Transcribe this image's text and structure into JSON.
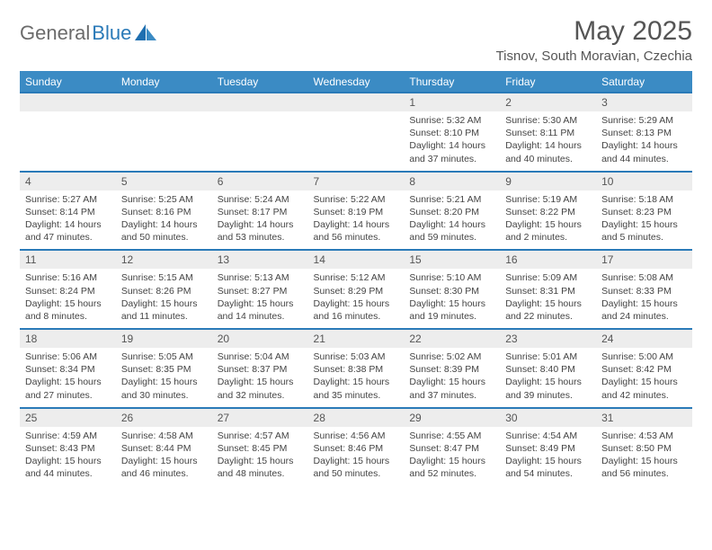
{
  "logo": {
    "text_gray": "General",
    "text_blue": "Blue"
  },
  "title": {
    "month": "May 2025",
    "location": "Tisnov, South Moravian, Czechia"
  },
  "colors": {
    "header_blue": "#3b8bc4",
    "rule_blue": "#2a7ab8",
    "daynum_bg": "#ededed",
    "text": "#444444"
  },
  "dow": [
    "Sunday",
    "Monday",
    "Tuesday",
    "Wednesday",
    "Thursday",
    "Friday",
    "Saturday"
  ],
  "weeks": [
    [
      null,
      null,
      null,
      null,
      {
        "n": "1",
        "sr": "5:32 AM",
        "ss": "8:10 PM",
        "dl": "14 hours and 37 minutes."
      },
      {
        "n": "2",
        "sr": "5:30 AM",
        "ss": "8:11 PM",
        "dl": "14 hours and 40 minutes."
      },
      {
        "n": "3",
        "sr": "5:29 AM",
        "ss": "8:13 PM",
        "dl": "14 hours and 44 minutes."
      }
    ],
    [
      {
        "n": "4",
        "sr": "5:27 AM",
        "ss": "8:14 PM",
        "dl": "14 hours and 47 minutes."
      },
      {
        "n": "5",
        "sr": "5:25 AM",
        "ss": "8:16 PM",
        "dl": "14 hours and 50 minutes."
      },
      {
        "n": "6",
        "sr": "5:24 AM",
        "ss": "8:17 PM",
        "dl": "14 hours and 53 minutes."
      },
      {
        "n": "7",
        "sr": "5:22 AM",
        "ss": "8:19 PM",
        "dl": "14 hours and 56 minutes."
      },
      {
        "n": "8",
        "sr": "5:21 AM",
        "ss": "8:20 PM",
        "dl": "14 hours and 59 minutes."
      },
      {
        "n": "9",
        "sr": "5:19 AM",
        "ss": "8:22 PM",
        "dl": "15 hours and 2 minutes."
      },
      {
        "n": "10",
        "sr": "5:18 AM",
        "ss": "8:23 PM",
        "dl": "15 hours and 5 minutes."
      }
    ],
    [
      {
        "n": "11",
        "sr": "5:16 AM",
        "ss": "8:24 PM",
        "dl": "15 hours and 8 minutes."
      },
      {
        "n": "12",
        "sr": "5:15 AM",
        "ss": "8:26 PM",
        "dl": "15 hours and 11 minutes."
      },
      {
        "n": "13",
        "sr": "5:13 AM",
        "ss": "8:27 PM",
        "dl": "15 hours and 14 minutes."
      },
      {
        "n": "14",
        "sr": "5:12 AM",
        "ss": "8:29 PM",
        "dl": "15 hours and 16 minutes."
      },
      {
        "n": "15",
        "sr": "5:10 AM",
        "ss": "8:30 PM",
        "dl": "15 hours and 19 minutes."
      },
      {
        "n": "16",
        "sr": "5:09 AM",
        "ss": "8:31 PM",
        "dl": "15 hours and 22 minutes."
      },
      {
        "n": "17",
        "sr": "5:08 AM",
        "ss": "8:33 PM",
        "dl": "15 hours and 24 minutes."
      }
    ],
    [
      {
        "n": "18",
        "sr": "5:06 AM",
        "ss": "8:34 PM",
        "dl": "15 hours and 27 minutes."
      },
      {
        "n": "19",
        "sr": "5:05 AM",
        "ss": "8:35 PM",
        "dl": "15 hours and 30 minutes."
      },
      {
        "n": "20",
        "sr": "5:04 AM",
        "ss": "8:37 PM",
        "dl": "15 hours and 32 minutes."
      },
      {
        "n": "21",
        "sr": "5:03 AM",
        "ss": "8:38 PM",
        "dl": "15 hours and 35 minutes."
      },
      {
        "n": "22",
        "sr": "5:02 AM",
        "ss": "8:39 PM",
        "dl": "15 hours and 37 minutes."
      },
      {
        "n": "23",
        "sr": "5:01 AM",
        "ss": "8:40 PM",
        "dl": "15 hours and 39 minutes."
      },
      {
        "n": "24",
        "sr": "5:00 AM",
        "ss": "8:42 PM",
        "dl": "15 hours and 42 minutes."
      }
    ],
    [
      {
        "n": "25",
        "sr": "4:59 AM",
        "ss": "8:43 PM",
        "dl": "15 hours and 44 minutes."
      },
      {
        "n": "26",
        "sr": "4:58 AM",
        "ss": "8:44 PM",
        "dl": "15 hours and 46 minutes."
      },
      {
        "n": "27",
        "sr": "4:57 AM",
        "ss": "8:45 PM",
        "dl": "15 hours and 48 minutes."
      },
      {
        "n": "28",
        "sr": "4:56 AM",
        "ss": "8:46 PM",
        "dl": "15 hours and 50 minutes."
      },
      {
        "n": "29",
        "sr": "4:55 AM",
        "ss": "8:47 PM",
        "dl": "15 hours and 52 minutes."
      },
      {
        "n": "30",
        "sr": "4:54 AM",
        "ss": "8:49 PM",
        "dl": "15 hours and 54 minutes."
      },
      {
        "n": "31",
        "sr": "4:53 AM",
        "ss": "8:50 PM",
        "dl": "15 hours and 56 minutes."
      }
    ]
  ],
  "labels": {
    "sunrise": "Sunrise: ",
    "sunset": "Sunset: ",
    "daylight": "Daylight: "
  }
}
